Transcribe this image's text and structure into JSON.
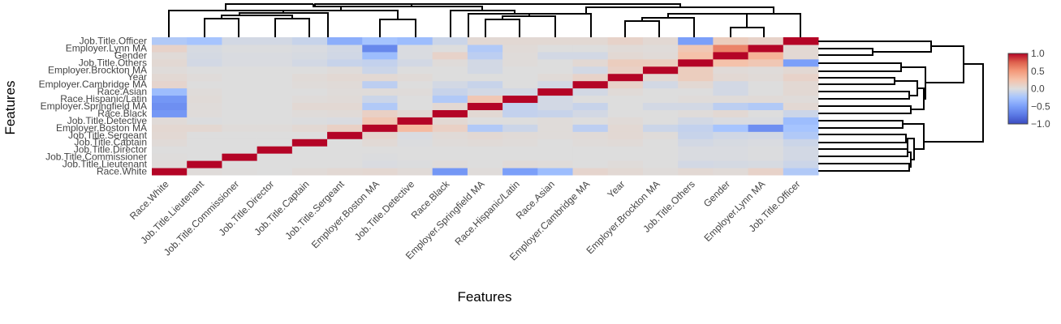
{
  "chart_data": {
    "type": "heatmap",
    "xlabel": "Features",
    "ylabel": "Features",
    "x": [
      "Race.White",
      "Job.Title.Lieutenant",
      "Job.Title.Commissioner",
      "Job.Title.Director",
      "Job.Title.Captain",
      "Job.Title.Sergeant",
      "Employer.Boston MA",
      "Job.Title.Detective",
      "Race.Black",
      "Employer.Springfield MA",
      "Race.Hispanic/Latin",
      "Race.Asian",
      "Employer.Cambridge MA",
      "Year",
      "Employer.Brockton MA",
      "Job.Title.Others",
      "Gender",
      "Employer.Lynn MA",
      "Job.Title.Officer"
    ],
    "y": [
      "Race.White",
      "Job.Title.Lieutenant",
      "Job.Title.Commissioner",
      "Job.Title.Director",
      "Job.Title.Captain",
      "Job.Title.Sergeant",
      "Employer.Boston MA",
      "Job.Title.Detective",
      "Race.Black",
      "Employer.Springfield MA",
      "Race.Hispanic/Latin",
      "Race.Asian",
      "Employer.Cambridge MA",
      "Year",
      "Employer.Brockton MA",
      "Job.Title.Others",
      "Gender",
      "Employer.Lynn MA",
      "Job.Title.Officer"
    ],
    "z": [
      [
        1.0,
        0.02,
        0.01,
        0.0,
        0.03,
        0.05,
        0.06,
        0.03,
        -0.55,
        0.02,
        -0.5,
        -0.3,
        0.08,
        0.05,
        0.02,
        0.05,
        0.03,
        0.1,
        -0.2
      ],
      [
        0.02,
        1.0,
        0.0,
        0.0,
        0.0,
        0.0,
        -0.02,
        -0.01,
        0.02,
        0.0,
        0.03,
        0.02,
        0.0,
        0.02,
        0.0,
        -0.05,
        -0.04,
        -0.03,
        -0.08
      ],
      [
        0.01,
        0.0,
        1.0,
        0.0,
        0.0,
        0.0,
        -0.01,
        0.0,
        0.0,
        0.0,
        0.0,
        0.0,
        0.0,
        0.0,
        0.0,
        -0.02,
        -0.02,
        -0.01,
        -0.05
      ],
      [
        0.0,
        0.0,
        0.0,
        1.0,
        0.0,
        0.0,
        0.0,
        0.0,
        0.0,
        0.0,
        0.0,
        0.0,
        0.0,
        0.0,
        0.0,
        -0.02,
        -0.02,
        -0.01,
        -0.05
      ],
      [
        0.03,
        0.0,
        0.0,
        0.0,
        1.0,
        0.0,
        0.04,
        -0.01,
        0.02,
        0.03,
        0.02,
        0.0,
        0.02,
        0.03,
        0.0,
        -0.05,
        -0.03,
        -0.02,
        -0.08
      ],
      [
        0.05,
        0.0,
        0.0,
        0.0,
        0.0,
        1.0,
        0.08,
        -0.02,
        0.03,
        0.05,
        0.03,
        0.02,
        0.03,
        0.05,
        0.02,
        -0.1,
        -0.06,
        -0.05,
        -0.2
      ],
      [
        0.06,
        0.06,
        0.02,
        0.02,
        0.05,
        0.12,
        1.0,
        0.3,
        0.12,
        -0.2,
        -0.08,
        0.02,
        -0.15,
        0.05,
        -0.08,
        -0.12,
        -0.25,
        -0.6,
        -0.25
      ],
      [
        0.03,
        -0.01,
        0.0,
        0.0,
        -0.01,
        -0.02,
        0.2,
        1.0,
        0.05,
        0.0,
        0.0,
        0.02,
        0.0,
        0.03,
        0.0,
        -0.05,
        -0.02,
        -0.02,
        -0.3
      ],
      [
        -0.55,
        0.02,
        0.0,
        0.0,
        0.02,
        0.03,
        0.12,
        0.05,
        1.0,
        0.05,
        -0.12,
        -0.1,
        -0.05,
        0.0,
        0.0,
        0.02,
        0.05,
        0.0,
        -0.08
      ],
      [
        -0.6,
        0.02,
        0.0,
        0.0,
        0.05,
        0.05,
        -0.2,
        0.0,
        0.05,
        1.0,
        -0.12,
        -0.05,
        -0.1,
        0.0,
        -0.05,
        -0.05,
        -0.15,
        -0.2,
        0.05
      ],
      [
        -0.55,
        0.03,
        0.0,
        0.0,
        0.02,
        0.03,
        -0.08,
        0.0,
        -0.2,
        0.2,
        1.0,
        -0.05,
        0.0,
        0.0,
        0.0,
        0.02,
        0.02,
        0.03,
        0.02
      ],
      [
        -0.3,
        0.02,
        0.0,
        0.0,
        0.0,
        0.02,
        0.02,
        0.02,
        -0.1,
        -0.05,
        -0.05,
        1.0,
        -0.05,
        0.03,
        0.0,
        0.0,
        -0.05,
        0.0,
        0.05
      ],
      [
        0.08,
        0.0,
        0.0,
        0.0,
        0.02,
        0.03,
        -0.15,
        0.0,
        -0.05,
        -0.1,
        0.0,
        -0.05,
        1.0,
        0.1,
        -0.05,
        0.05,
        -0.05,
        0.0,
        0.05
      ],
      [
        0.05,
        0.02,
        0.0,
        0.0,
        0.03,
        0.05,
        0.05,
        0.03,
        0.0,
        0.0,
        0.0,
        0.03,
        0.1,
        1.0,
        0.05,
        0.15,
        0.05,
        0.03,
        0.1
      ],
      [
        0.02,
        0.0,
        0.0,
        0.0,
        0.0,
        0.02,
        -0.08,
        0.0,
        0.0,
        -0.05,
        0.0,
        0.0,
        -0.05,
        0.12,
        1.0,
        0.15,
        0.03,
        0.02,
        0.05
      ],
      [
        0.05,
        -0.05,
        -0.02,
        -0.02,
        -0.05,
        -0.1,
        -0.12,
        -0.05,
        0.02,
        -0.05,
        0.02,
        0.0,
        0.05,
        0.15,
        0.15,
        1.0,
        0.25,
        0.2,
        -0.5
      ],
      [
        0.03,
        -0.04,
        -0.02,
        -0.02,
        -0.03,
        -0.06,
        -0.3,
        -0.02,
        0.1,
        -0.15,
        0.02,
        -0.05,
        -0.05,
        0.05,
        0.03,
        0.25,
        1.0,
        0.35,
        0.05
      ],
      [
        0.1,
        -0.03,
        -0.01,
        -0.01,
        -0.02,
        -0.05,
        -0.65,
        -0.02,
        0.0,
        -0.2,
        0.03,
        0.0,
        0.0,
        0.03,
        0.02,
        0.2,
        0.6,
        1.0,
        0.05
      ],
      [
        -0.2,
        -0.25,
        -0.05,
        -0.05,
        -0.1,
        -0.4,
        -0.25,
        -0.3,
        -0.08,
        0.05,
        0.05,
        0.05,
        0.05,
        0.1,
        0.05,
        -0.5,
        0.15,
        0.1,
        1.0
      ]
    ],
    "colorscale": [
      "#3b4cc0",
      "#b40426"
    ],
    "zmin": -1,
    "zmax": 1,
    "colorbar_ticks": [
      1.0,
      0.5,
      0.0,
      -0.5,
      -1.0
    ],
    "colorbar_tick_labels": [
      "1.0",
      "0.5",
      "0.0",
      "−0.5",
      "−1.0"
    ]
  }
}
